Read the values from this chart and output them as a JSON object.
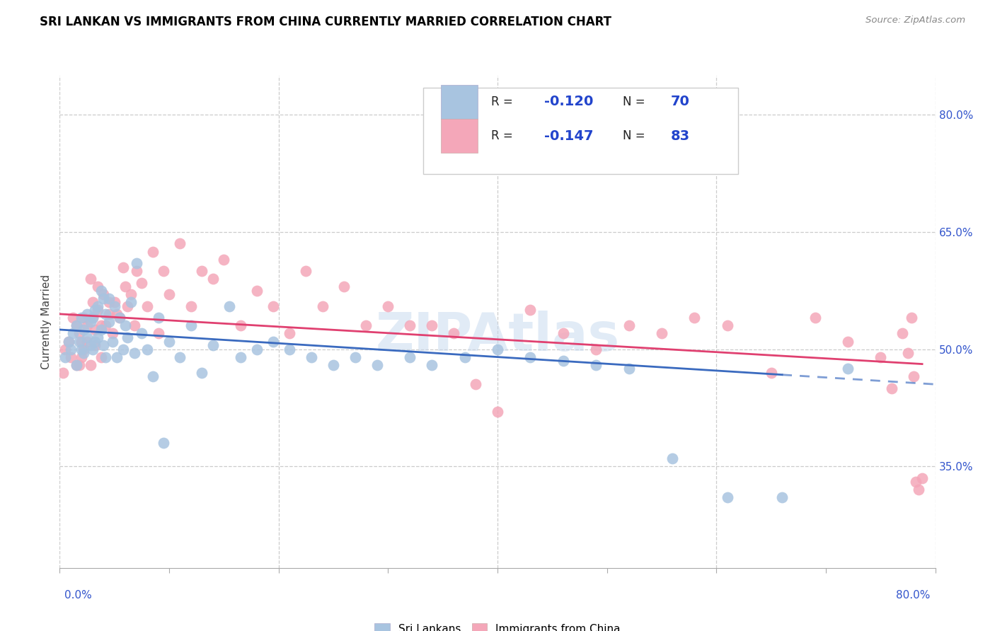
{
  "title": "SRI LANKAN VS IMMIGRANTS FROM CHINA CURRENTLY MARRIED CORRELATION CHART",
  "source": "Source: ZipAtlas.com",
  "ylabel": "Currently Married",
  "ytick_labels": [
    "80.0%",
    "65.0%",
    "50.0%",
    "35.0%"
  ],
  "ytick_values": [
    0.8,
    0.65,
    0.5,
    0.35
  ],
  "xmin": 0.0,
  "xmax": 0.8,
  "ymin": 0.22,
  "ymax": 0.85,
  "legend_label_blue": "Sri Lankans",
  "legend_label_pink": "Immigrants from China",
  "blue_color": "#a8c4e0",
  "pink_color": "#f4a7b9",
  "line_blue": "#3a6abf",
  "line_pink": "#e04070",
  "watermark": "ZIPAtlas",
  "blue_scatter_x": [
    0.005,
    0.008,
    0.01,
    0.012,
    0.015,
    0.015,
    0.018,
    0.02,
    0.02,
    0.022,
    0.022,
    0.025,
    0.025,
    0.028,
    0.028,
    0.03,
    0.03,
    0.032,
    0.032,
    0.035,
    0.035,
    0.038,
    0.038,
    0.04,
    0.04,
    0.042,
    0.042,
    0.045,
    0.045,
    0.048,
    0.05,
    0.052,
    0.055,
    0.058,
    0.06,
    0.062,
    0.065,
    0.068,
    0.07,
    0.075,
    0.08,
    0.085,
    0.09,
    0.095,
    0.1,
    0.11,
    0.12,
    0.13,
    0.14,
    0.155,
    0.165,
    0.18,
    0.195,
    0.21,
    0.23,
    0.25,
    0.27,
    0.29,
    0.32,
    0.34,
    0.37,
    0.4,
    0.43,
    0.46,
    0.49,
    0.52,
    0.56,
    0.61,
    0.66,
    0.72
  ],
  "blue_scatter_y": [
    0.49,
    0.51,
    0.5,
    0.52,
    0.48,
    0.53,
    0.51,
    0.5,
    0.54,
    0.495,
    0.525,
    0.515,
    0.545,
    0.505,
    0.535,
    0.5,
    0.54,
    0.51,
    0.55,
    0.515,
    0.555,
    0.575,
    0.525,
    0.565,
    0.505,
    0.545,
    0.49,
    0.535,
    0.565,
    0.51,
    0.555,
    0.49,
    0.54,
    0.5,
    0.53,
    0.515,
    0.56,
    0.495,
    0.61,
    0.52,
    0.5,
    0.465,
    0.54,
    0.38,
    0.51,
    0.49,
    0.53,
    0.47,
    0.505,
    0.555,
    0.49,
    0.5,
    0.51,
    0.5,
    0.49,
    0.48,
    0.49,
    0.48,
    0.49,
    0.48,
    0.49,
    0.5,
    0.49,
    0.485,
    0.48,
    0.475,
    0.36,
    0.31,
    0.31,
    0.475
  ],
  "pink_scatter_x": [
    0.003,
    0.005,
    0.008,
    0.01,
    0.012,
    0.015,
    0.015,
    0.018,
    0.018,
    0.02,
    0.02,
    0.022,
    0.022,
    0.025,
    0.025,
    0.028,
    0.028,
    0.03,
    0.03,
    0.032,
    0.032,
    0.035,
    0.035,
    0.038,
    0.038,
    0.04,
    0.042,
    0.045,
    0.045,
    0.048,
    0.05,
    0.052,
    0.055,
    0.058,
    0.06,
    0.062,
    0.065,
    0.068,
    0.07,
    0.075,
    0.08,
    0.085,
    0.09,
    0.095,
    0.1,
    0.11,
    0.12,
    0.13,
    0.14,
    0.15,
    0.165,
    0.18,
    0.195,
    0.21,
    0.225,
    0.24,
    0.26,
    0.28,
    0.3,
    0.32,
    0.34,
    0.36,
    0.38,
    0.4,
    0.43,
    0.46,
    0.49,
    0.52,
    0.55,
    0.58,
    0.61,
    0.65,
    0.69,
    0.72,
    0.75,
    0.76,
    0.77,
    0.775,
    0.778,
    0.78,
    0.782,
    0.785,
    0.788
  ],
  "pink_scatter_y": [
    0.47,
    0.5,
    0.51,
    0.49,
    0.54,
    0.48,
    0.53,
    0.52,
    0.48,
    0.51,
    0.49,
    0.54,
    0.5,
    0.53,
    0.51,
    0.59,
    0.48,
    0.56,
    0.54,
    0.525,
    0.505,
    0.58,
    0.55,
    0.53,
    0.49,
    0.57,
    0.53,
    0.56,
    0.545,
    0.52,
    0.56,
    0.545,
    0.54,
    0.605,
    0.58,
    0.555,
    0.57,
    0.53,
    0.6,
    0.585,
    0.555,
    0.625,
    0.52,
    0.6,
    0.57,
    0.635,
    0.555,
    0.6,
    0.59,
    0.615,
    0.53,
    0.575,
    0.555,
    0.52,
    0.6,
    0.555,
    0.58,
    0.53,
    0.555,
    0.53,
    0.53,
    0.52,
    0.455,
    0.42,
    0.55,
    0.52,
    0.5,
    0.53,
    0.52,
    0.54,
    0.53,
    0.47,
    0.54,
    0.51,
    0.49,
    0.45,
    0.52,
    0.495,
    0.54,
    0.465,
    0.33,
    0.32,
    0.335
  ]
}
